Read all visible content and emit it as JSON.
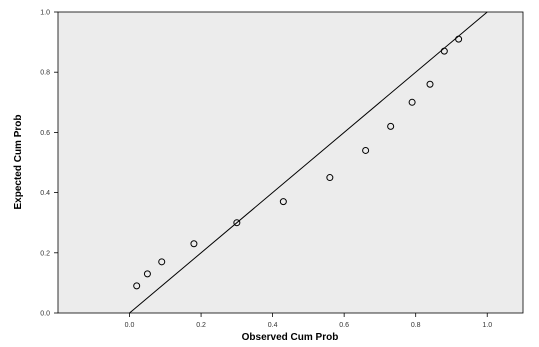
{
  "chart_data": {
    "type": "scatter",
    "title": "",
    "xlabel": "Observed Cum Prob",
    "ylabel": "Expected Cum Prob",
    "xlim": [
      -0.2,
      1.1
    ],
    "ylim": [
      0.0,
      1.0
    ],
    "x_ticks": [
      0.0,
      0.2,
      0.4,
      0.6,
      0.8,
      1.0
    ],
    "x_tick_labels": [
      "0.0",
      "0.2",
      "0.4",
      "0.6",
      "0.8",
      "1.0"
    ],
    "y_ticks": [
      0.0,
      0.2,
      0.4,
      0.6,
      0.8,
      1.0
    ],
    "y_tick_labels": [
      "0.0",
      "0.2",
      "0.4",
      "0.6",
      "0.8",
      "1.0"
    ],
    "grid": false,
    "reference_line": {
      "from": [
        0.0,
        0.0
      ],
      "to": [
        1.0,
        1.0
      ]
    },
    "series": [
      {
        "marker": "hollow-circle",
        "x": [
          0.02,
          0.05,
          0.09,
          0.18,
          0.3,
          0.43,
          0.56,
          0.66,
          0.73,
          0.79,
          0.84,
          0.88,
          0.92
        ],
        "y": [
          0.09,
          0.13,
          0.17,
          0.23,
          0.3,
          0.37,
          0.45,
          0.54,
          0.62,
          0.7,
          0.76,
          0.87,
          0.91
        ]
      }
    ],
    "colors": {
      "plot_background": "#ececec",
      "reference_line": "#000000",
      "marker_stroke": "#000000",
      "axis": "#000000"
    }
  }
}
